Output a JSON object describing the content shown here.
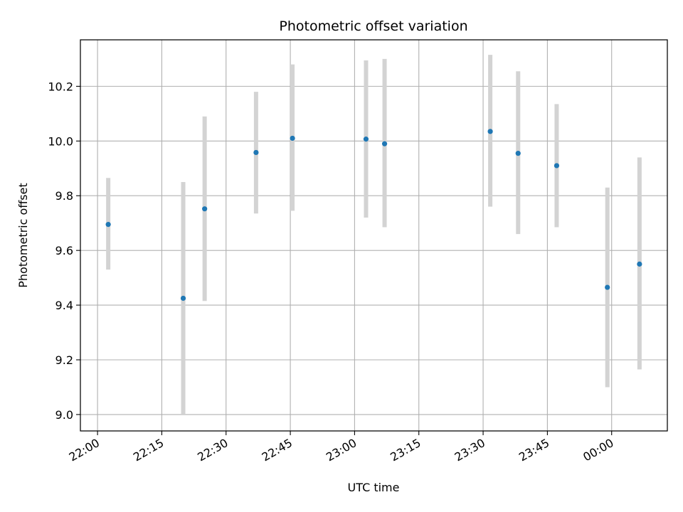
{
  "chart_data": {
    "type": "scatter",
    "title": "Photometric offset variation",
    "xlabel": "UTC time",
    "ylabel": "Photometric offset",
    "x_tick_labels": [
      "22:00",
      "22:15",
      "22:30",
      "22:45",
      "23:00",
      "23:15",
      "23:30",
      "23:45",
      "00:00"
    ],
    "y_tick_labels": [
      "9.0",
      "9.2",
      "9.4",
      "9.6",
      "9.8",
      "10.0",
      "10.2"
    ],
    "xlim": [
      "21:56",
      "00:13"
    ],
    "ylim": [
      8.94,
      10.37
    ],
    "grid": true,
    "colors": {
      "point": "#1f77b4",
      "errorbar": "#d3d3d3"
    },
    "series": [
      {
        "x": [
          "22:02:30",
          "22:20:00",
          "22:25:00",
          "22:37:00",
          "22:45:30",
          "23:02:40",
          "23:07:00",
          "23:31:40",
          "23:38:10",
          "23:47:10",
          "23:59:00",
          "00:06:30"
        ],
        "y": [
          9.695,
          9.425,
          9.752,
          9.958,
          10.01,
          10.007,
          9.99,
          10.035,
          9.955,
          9.91,
          9.465,
          9.55
        ],
        "error_low": [
          9.53,
          9.0,
          9.415,
          9.735,
          9.745,
          9.72,
          9.685,
          9.76,
          9.66,
          9.685,
          9.1,
          9.165
        ],
        "error_high": [
          9.865,
          9.85,
          10.09,
          10.18,
          10.28,
          10.295,
          10.3,
          10.315,
          10.255,
          10.135,
          9.83,
          9.94
        ]
      }
    ]
  }
}
